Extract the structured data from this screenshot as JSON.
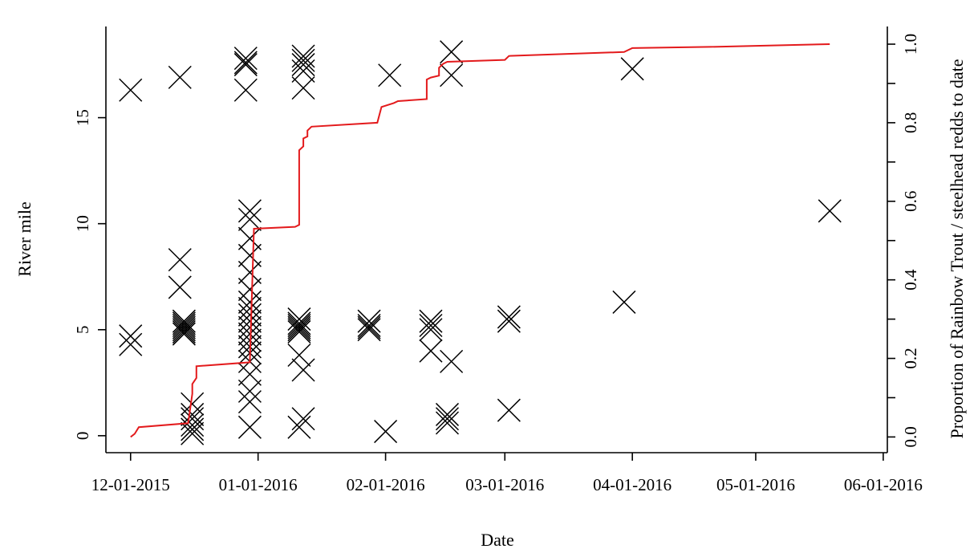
{
  "chart_data": {
    "type": "scatter",
    "xlabel": "Date",
    "ylabel": "River mile",
    "y2label": "Proportion of Rainbow Trout / steelhead redds to date",
    "xlim": [
      "2015-11-25",
      "2016-06-02"
    ],
    "ylim": [
      -0.8,
      19.3
    ],
    "y2lim": [
      -0.04,
      1.045
    ],
    "x_ticks": [
      "12-01-2015",
      "01-01-2016",
      "02-01-2016",
      "03-01-2016",
      "04-01-2016",
      "05-01-2016",
      "06-01-2016"
    ],
    "y_ticks": [
      "0",
      "5",
      "10",
      "15"
    ],
    "y2_ticks": [
      "0.0",
      "0.2",
      "0.4",
      "0.6",
      "0.8",
      "1.0"
    ],
    "series": [
      {
        "type": "scatter",
        "marker": "x",
        "color": "#000000",
        "axis": "left",
        "points": [
          [
            "2015-12-01",
            16.3
          ],
          [
            "2015-12-01",
            4.7
          ],
          [
            "2015-12-01",
            4.3
          ],
          [
            "2015-12-13",
            16.9
          ],
          [
            "2015-12-13",
            8.3
          ],
          [
            "2015-12-13",
            7.0
          ],
          [
            "2015-12-14",
            5.3
          ],
          [
            "2015-12-14",
            5.2
          ],
          [
            "2015-12-14",
            5.1
          ],
          [
            "2015-12-14",
            5.0
          ],
          [
            "2015-12-14",
            4.9
          ],
          [
            "2015-12-14",
            4.8
          ],
          [
            "2015-12-14",
            5.4
          ],
          [
            "2015-12-16",
            1.5
          ],
          [
            "2015-12-16",
            1.0
          ],
          [
            "2015-12-16",
            0.8
          ],
          [
            "2015-12-16",
            0.5
          ],
          [
            "2015-12-16",
            0.3
          ],
          [
            "2015-12-16",
            0.1
          ],
          [
            "2015-12-29",
            17.6
          ],
          [
            "2015-12-29",
            17.8
          ],
          [
            "2015-12-29",
            17.5
          ],
          [
            "2015-12-29",
            16.3
          ],
          [
            "2015-12-30",
            10.6
          ],
          [
            "2015-12-30",
            10.2
          ],
          [
            "2015-12-30",
            9.3
          ],
          [
            "2015-12-30",
            8.5
          ],
          [
            "2015-12-30",
            7.7
          ],
          [
            "2015-12-30",
            6.9
          ],
          [
            "2015-12-30",
            6.3
          ],
          [
            "2015-12-30",
            6.0
          ],
          [
            "2015-12-30",
            5.7
          ],
          [
            "2015-12-30",
            5.4
          ],
          [
            "2015-12-30",
            5.1
          ],
          [
            "2015-12-30",
            4.8
          ],
          [
            "2015-12-30",
            4.5
          ],
          [
            "2015-12-30",
            4.2
          ],
          [
            "2015-12-30",
            3.9
          ],
          [
            "2015-12-30",
            3.5
          ],
          [
            "2015-12-30",
            2.9
          ],
          [
            "2015-12-30",
            2.1
          ],
          [
            "2015-12-30",
            1.6
          ],
          [
            "2015-12-30",
            0.4
          ],
          [
            "2016-01-11",
            5.5
          ],
          [
            "2016-01-11",
            5.3
          ],
          [
            "2016-01-11",
            5.2
          ],
          [
            "2016-01-11",
            5.1
          ],
          [
            "2016-01-11",
            5.0
          ],
          [
            "2016-01-11",
            4.9
          ],
          [
            "2016-01-11",
            3.8
          ],
          [
            "2016-01-11",
            0.4
          ],
          [
            "2016-01-12",
            17.9
          ],
          [
            "2016-01-12",
            17.7
          ],
          [
            "2016-01-12",
            17.5
          ],
          [
            "2016-01-12",
            17.2
          ],
          [
            "2016-01-12",
            16.4
          ],
          [
            "2016-01-12",
            3.1
          ],
          [
            "2016-01-12",
            0.8
          ],
          [
            "2016-01-28",
            5.4
          ],
          [
            "2016-01-28",
            5.2
          ],
          [
            "2016-01-28",
            5.1
          ],
          [
            "2016-01-28",
            5.0
          ],
          [
            "2016-02-01",
            0.2
          ],
          [
            "2016-02-02",
            17.0
          ],
          [
            "2016-02-12",
            5.4
          ],
          [
            "2016-02-12",
            5.2
          ],
          [
            "2016-02-12",
            5.0
          ],
          [
            "2016-02-12",
            4.0
          ],
          [
            "2016-02-17",
            18.1
          ],
          [
            "2016-02-17",
            17.0
          ],
          [
            "2016-02-17",
            3.5
          ],
          [
            "2016-02-16",
            1.0
          ],
          [
            "2016-02-16",
            0.8
          ],
          [
            "2016-02-16",
            0.6
          ],
          [
            "2016-03-02",
            5.6
          ],
          [
            "2016-03-02",
            5.4
          ],
          [
            "2016-03-02",
            1.2
          ],
          [
            "2016-03-30",
            6.3
          ],
          [
            "2016-04-01",
            17.3
          ],
          [
            "2016-05-19",
            10.6
          ]
        ]
      },
      {
        "type": "line",
        "color": "#e31a1c",
        "axis": "right",
        "step_points": [
          [
            "2015-12-01",
            0.0
          ],
          [
            "2015-12-02",
            0.008
          ],
          [
            "2015-12-03",
            0.025
          ],
          [
            "2015-12-15",
            0.035
          ],
          [
            "2015-12-16",
            0.11
          ],
          [
            "2015-12-16",
            0.135
          ],
          [
            "2015-12-17",
            0.15
          ],
          [
            "2015-12-17",
            0.18
          ],
          [
            "2015-12-30",
            0.19
          ],
          [
            "2015-12-31",
            0.53
          ],
          [
            "2016-01-10",
            0.535
          ],
          [
            "2016-01-11",
            0.54
          ],
          [
            "2016-01-11",
            0.73
          ],
          [
            "2016-01-12",
            0.74
          ],
          [
            "2016-01-12",
            0.76
          ],
          [
            "2016-01-13",
            0.765
          ],
          [
            "2016-01-13",
            0.78
          ],
          [
            "2016-01-14",
            0.79
          ],
          [
            "2016-01-30",
            0.8
          ],
          [
            "2016-01-31",
            0.84
          ],
          [
            "2016-02-03",
            0.85
          ],
          [
            "2016-02-04",
            0.855
          ],
          [
            "2016-02-11",
            0.86
          ],
          [
            "2016-02-11",
            0.91
          ],
          [
            "2016-02-12",
            0.915
          ],
          [
            "2016-02-14",
            0.92
          ],
          [
            "2016-02-14",
            0.94
          ],
          [
            "2016-02-15",
            0.95
          ],
          [
            "2016-02-16",
            0.955
          ],
          [
            "2016-03-01",
            0.96
          ],
          [
            "2016-03-02",
            0.97
          ],
          [
            "2016-03-30",
            0.98
          ],
          [
            "2016-04-01",
            0.99
          ],
          [
            "2016-04-20",
            0.993
          ],
          [
            "2016-05-19",
            1.0
          ]
        ]
      }
    ]
  }
}
